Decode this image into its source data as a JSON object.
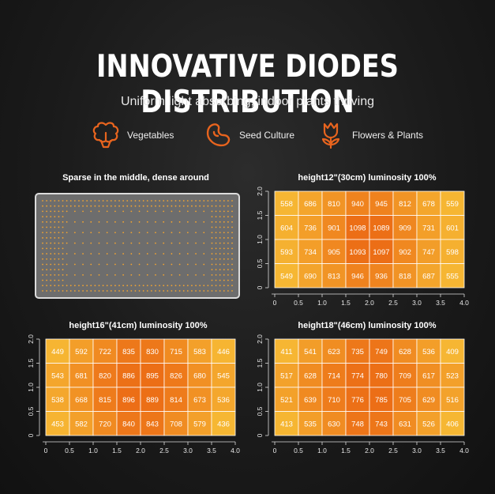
{
  "header": {
    "title": "INNOVATIVE DIODES DISTRIBUTION",
    "subtitle": "Uniform light absorbing, indoor plants thriving"
  },
  "features": [
    {
      "label": "Vegetables",
      "icon": "vegetables-icon"
    },
    {
      "label": "Seed Culture",
      "icon": "seed-icon"
    },
    {
      "label": "Flowers & Plants",
      "icon": "flower-icon"
    }
  ],
  "colors": {
    "accent": "#e8641e",
    "cell_low": "#f6b733",
    "cell_mid": "#f29c26",
    "cell_high": "#ec7417"
  },
  "led_panel": {
    "title": "Sparse in the middle, dense around"
  },
  "chart_data": [
    {
      "type": "heatmap",
      "title": "height12\"(30cm)  luminosity 100%",
      "x_ticks": [
        "0",
        "0.5",
        "1.0",
        "1.5",
        "2.0",
        "2.5",
        "3.0",
        "3.5",
        "4.0"
      ],
      "y_ticks": [
        "0",
        "0.5",
        "1.0",
        "1.5",
        "2.0"
      ],
      "xlim": [
        0,
        4
      ],
      "ylim": [
        0,
        2
      ],
      "rows": [
        [
          558,
          686,
          810,
          940,
          945,
          812,
          678,
          559
        ],
        [
          604,
          736,
          901,
          1098,
          1089,
          909,
          731,
          601
        ],
        [
          593,
          734,
          905,
          1093,
          1097,
          902,
          747,
          598
        ],
        [
          549,
          690,
          813,
          946,
          936,
          818,
          687,
          555
        ]
      ]
    },
    {
      "type": "heatmap",
      "title": "height16\"(41cm)  luminosity 100%",
      "x_ticks": [
        "0",
        "0.5",
        "1.0",
        "1.5",
        "2.0",
        "2.5",
        "3.0",
        "3.5",
        "4.0"
      ],
      "y_ticks": [
        "0",
        "0.5",
        "1.0",
        "1.5",
        "2.0"
      ],
      "xlim": [
        0,
        4
      ],
      "ylim": [
        0,
        2
      ],
      "rows": [
        [
          449,
          592,
          722,
          835,
          830,
          715,
          583,
          446
        ],
        [
          543,
          681,
          820,
          886,
          895,
          826,
          680,
          545
        ],
        [
          538,
          668,
          815,
          896,
          889,
          814,
          673,
          536
        ],
        [
          453,
          582,
          720,
          840,
          843,
          708,
          579,
          436
        ]
      ]
    },
    {
      "type": "heatmap",
      "title": "height18\"(46cm)  luminosity 100%",
      "x_ticks": [
        "0",
        "0.5",
        "1.0",
        "1.5",
        "2.0",
        "2.5",
        "3.0",
        "3.5",
        "4.0"
      ],
      "y_ticks": [
        "0",
        "0.5",
        "1.0",
        "1.5",
        "2.0"
      ],
      "xlim": [
        0,
        4
      ],
      "ylim": [
        0,
        2
      ],
      "rows": [
        [
          411,
          541,
          623,
          735,
          749,
          628,
          536,
          409
        ],
        [
          517,
          628,
          714,
          774,
          780,
          709,
          617,
          523
        ],
        [
          521,
          639,
          710,
          776,
          785,
          705,
          629,
          516
        ],
        [
          413,
          535,
          630,
          748,
          743,
          631,
          526,
          406
        ]
      ]
    }
  ]
}
